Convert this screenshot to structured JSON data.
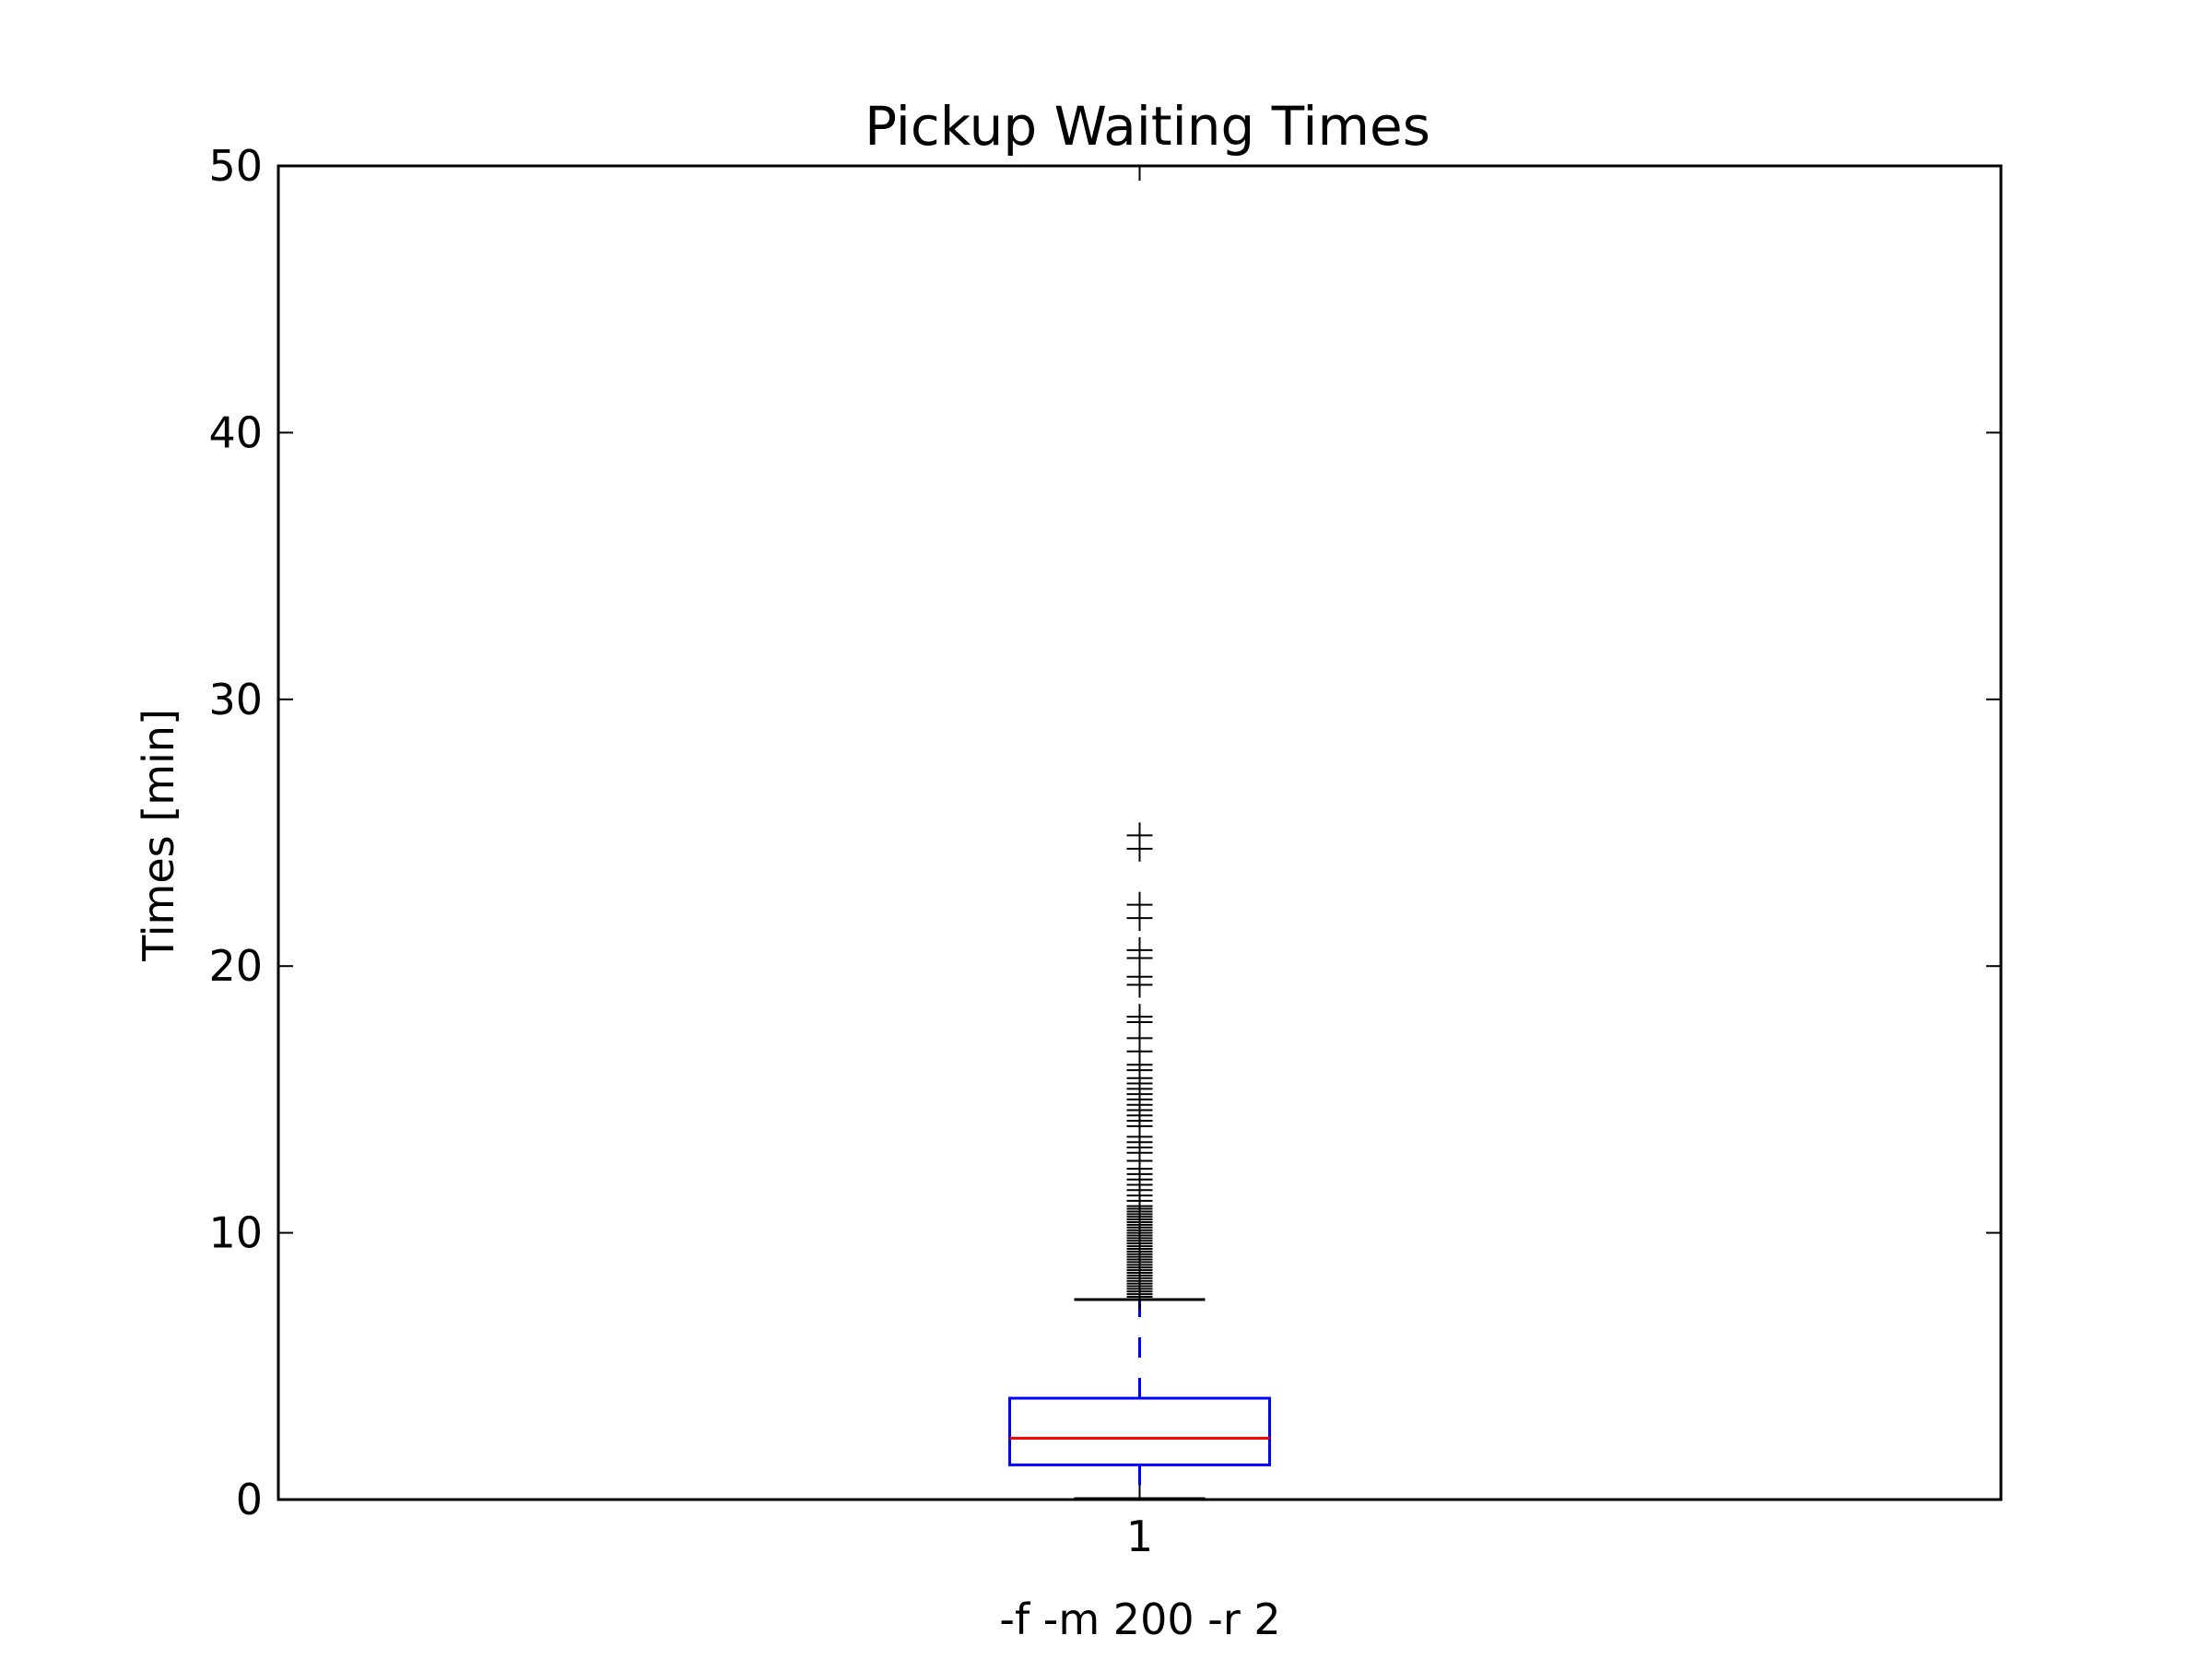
{
  "chart_data": {
    "type": "box",
    "title": "Pickup Waiting Times",
    "xlabel": "-f -m 200 -r 2",
    "ylabel": "Times [min]",
    "ylim": [
      0,
      50
    ],
    "yticks": [
      0,
      10,
      20,
      30,
      40,
      50
    ],
    "categories": [
      "1"
    ],
    "grid": false,
    "colors": {
      "box": "#0000ff",
      "median": "#ff0000",
      "whisker": "#0000ff",
      "cap": "#000000",
      "flier": "#000000",
      "axes": "#000000"
    },
    "boxes": [
      {
        "category": "1",
        "whisker_low": 0.0,
        "q1": 1.3,
        "median": 2.3,
        "q3": 3.8,
        "whisker_high": 7.5,
        "outliers": [
          7.6,
          7.7,
          7.8,
          7.9,
          8.0,
          8.1,
          8.2,
          8.3,
          8.4,
          8.5,
          8.6,
          8.7,
          8.8,
          8.9,
          9.0,
          9.1,
          9.2,
          9.3,
          9.4,
          9.5,
          9.6,
          9.7,
          9.8,
          9.9,
          10.0,
          10.1,
          10.2,
          10.3,
          10.4,
          10.5,
          10.6,
          10.7,
          10.8,
          10.9,
          11.0,
          11.2,
          11.4,
          11.6,
          11.8,
          12.0,
          12.2,
          12.4,
          12.7,
          13.0,
          13.2,
          13.4,
          13.6,
          14.0,
          14.2,
          14.4,
          14.6,
          14.8,
          15.0,
          15.2,
          15.4,
          15.6,
          15.8,
          16.1,
          16.3,
          16.8,
          17.3,
          17.9,
          18.1,
          19.3,
          19.6,
          20.3,
          20.6,
          21.8,
          22.3,
          24.4,
          24.9
        ]
      }
    ]
  }
}
